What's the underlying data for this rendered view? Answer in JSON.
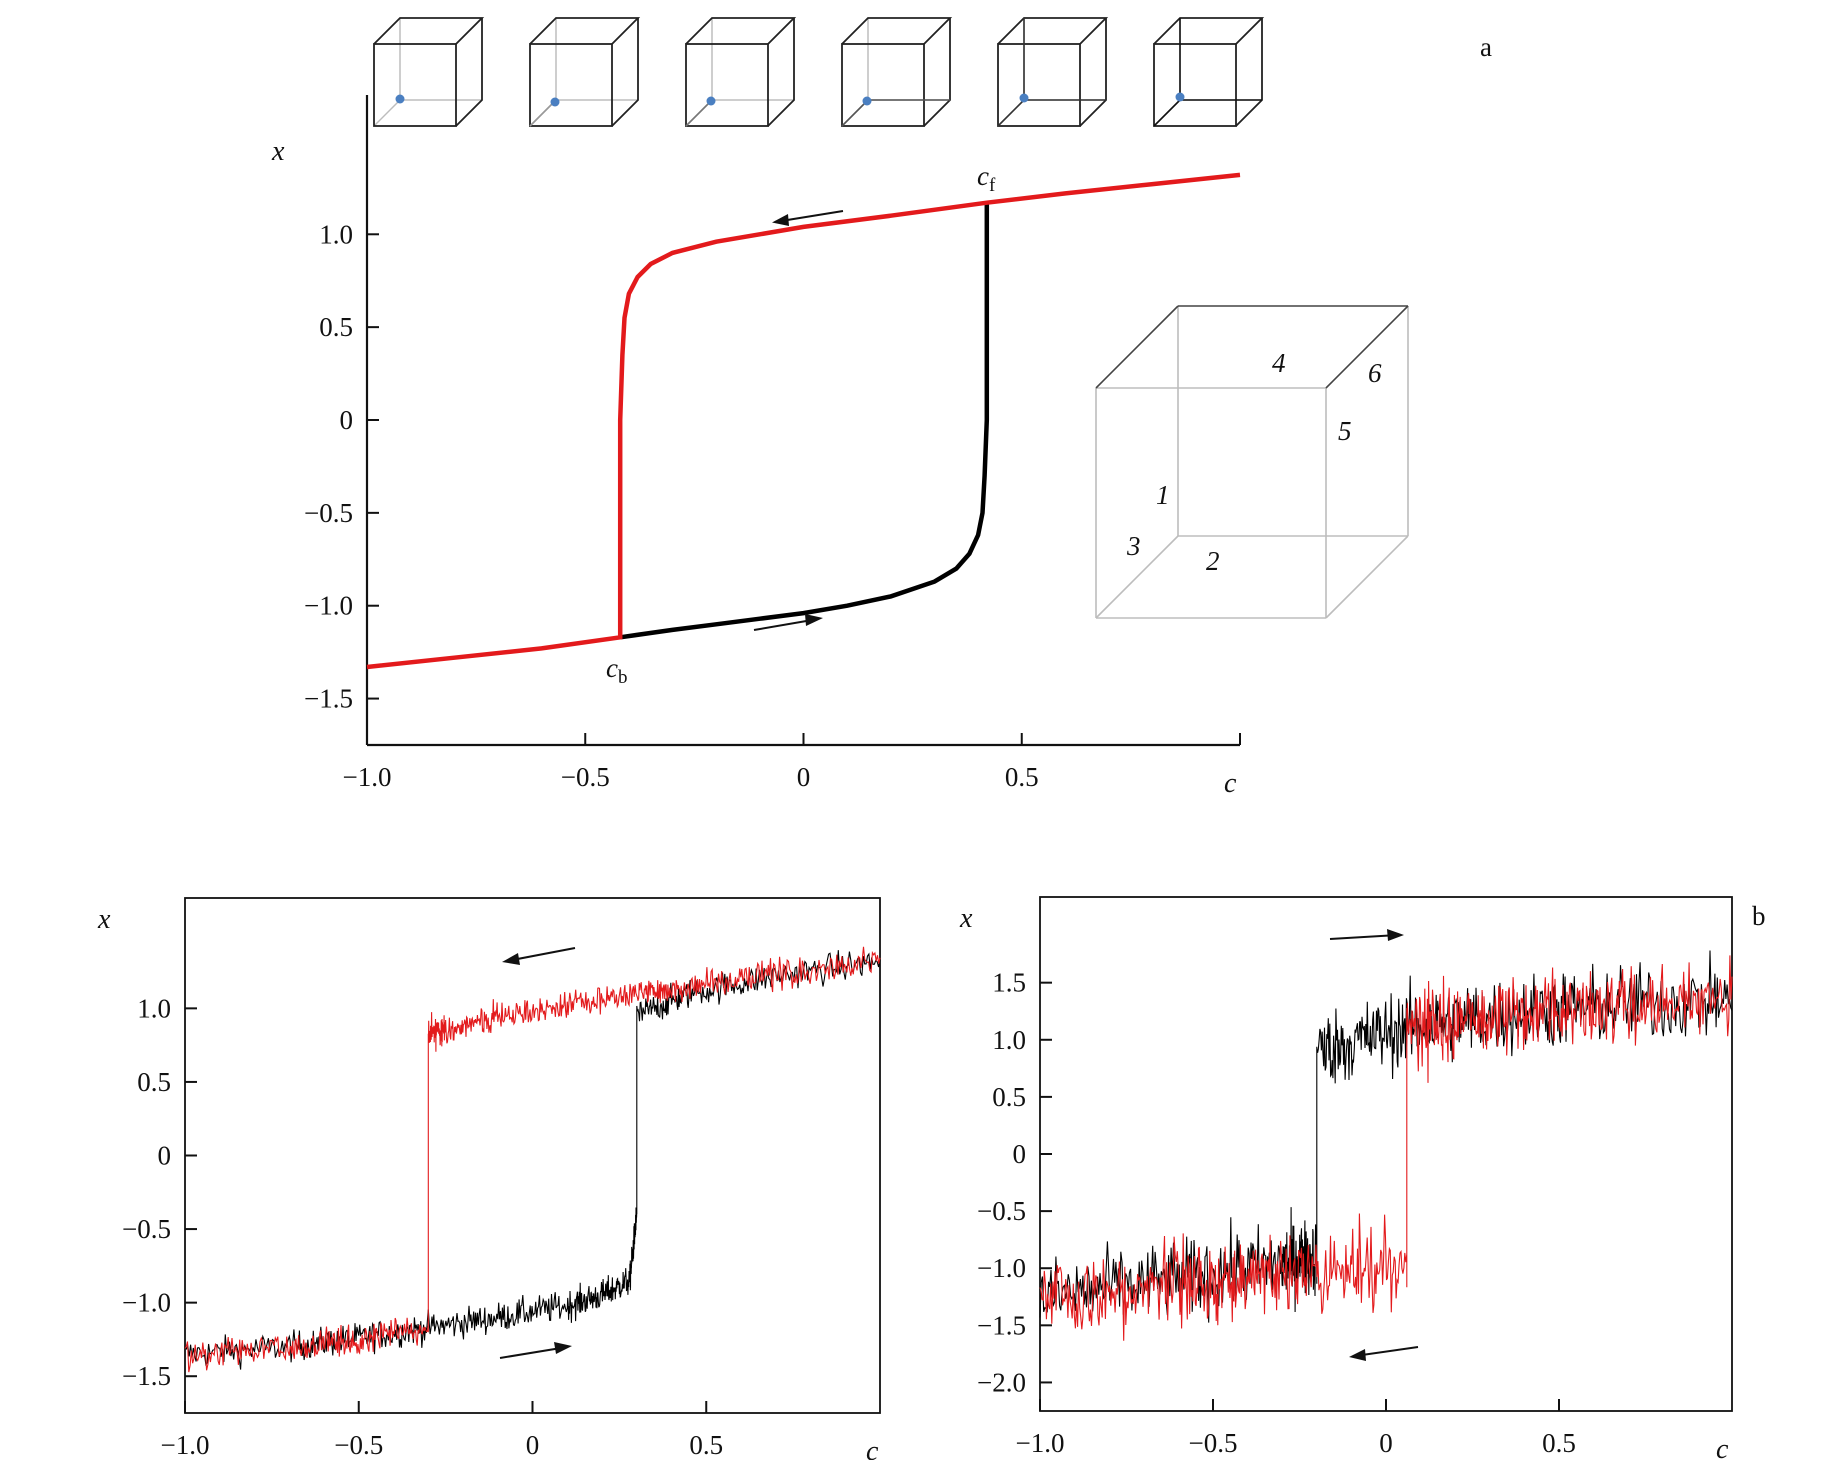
{
  "chart_data": [
    {
      "id": "a",
      "type": "line",
      "panel_label": "a",
      "xlabel": "c",
      "ylabel": "x",
      "xlim": [
        -1.0,
        1.0
      ],
      "ylim": [
        -1.75,
        1.75
      ],
      "x_ticks": [
        -1.0,
        -0.5,
        0,
        0.5
      ],
      "x_tick_labels": [
        "−1.0",
        "−0.5",
        "0",
        "0.5"
      ],
      "y_ticks": [
        1.0,
        0.5,
        0,
        -0.5,
        -1.0,
        -1.5
      ],
      "y_tick_labels": [
        "1.0",
        "0.5",
        "0",
        "−0.5",
        "−1.0",
        "−1.5"
      ],
      "critical_points": [
        {
          "label": "c",
          "sub": "f",
          "x": 0.42,
          "y": 1.17
        },
        {
          "label": "c",
          "sub": "b",
          "x": -0.42,
          "y": -1.17
        }
      ],
      "cube_edge_labels": [
        "1",
        "2",
        "3",
        "4",
        "5",
        "6"
      ],
      "top_cube_count": 6,
      "series": [
        {
          "role": "forward",
          "color": "#000000",
          "x": [
            -0.42,
            -0.3,
            -0.2,
            -0.1,
            0.0,
            0.1,
            0.2,
            0.3,
            0.35,
            0.38,
            0.4,
            0.41,
            0.415,
            0.42,
            0.42,
            0.42
          ],
          "y": [
            -1.17,
            -1.13,
            -1.1,
            -1.07,
            -1.04,
            -1.0,
            -0.95,
            -0.87,
            -0.8,
            -0.72,
            -0.62,
            -0.5,
            -0.3,
            0.0,
            0.6,
            1.17
          ]
        },
        {
          "role": "backward",
          "color": "#e31a1c",
          "x": [
            1.0,
            0.8,
            0.6,
            0.42,
            0.2,
            0.0,
            -0.2,
            -0.3,
            -0.35,
            -0.38,
            -0.4,
            -0.41,
            -0.415,
            -0.42,
            -0.42,
            -0.42,
            -0.6,
            -0.8,
            -1.0
          ],
          "y": [
            1.32,
            1.27,
            1.22,
            1.17,
            1.1,
            1.04,
            0.96,
            0.9,
            0.84,
            0.77,
            0.68,
            0.55,
            0.35,
            0.0,
            -0.6,
            -1.17,
            -1.23,
            -1.28,
            -1.33
          ]
        }
      ]
    },
    {
      "id": "b-left",
      "type": "line",
      "xlabel": "c",
      "ylabel": "x",
      "xlim": [
        -1.0,
        1.0
      ],
      "ylim": [
        -1.75,
        1.75
      ],
      "x_ticks": [
        -1.0,
        -0.5,
        0,
        0.5
      ],
      "x_tick_labels": [
        "−1.0",
        "−0.5",
        "0",
        "0.5"
      ],
      "y_ticks": [
        1.0,
        0.5,
        0,
        -0.5,
        -1.0,
        -1.5
      ],
      "y_tick_labels": [
        "1.0",
        "0.5",
        "0",
        "−0.5",
        "−1.0",
        "−1.5"
      ],
      "series": [
        {
          "role": "forward",
          "color": "#000000",
          "noise_amplitude": 0.06,
          "x": [
            -1.0,
            -0.7,
            -0.5,
            -0.3,
            -0.1,
            0.1,
            0.2,
            0.28,
            0.3,
            0.3,
            0.45,
            0.7,
            1.0
          ],
          "y": [
            -1.35,
            -1.3,
            -1.24,
            -1.17,
            -1.1,
            -1.02,
            -0.95,
            -0.85,
            -0.4,
            0.95,
            1.1,
            1.22,
            1.32
          ]
        },
        {
          "role": "backward",
          "color": "#e31a1c",
          "noise_amplitude": 0.06,
          "x": [
            1.0,
            0.7,
            0.45,
            0.3,
            0.1,
            -0.1,
            -0.25,
            -0.3,
            -0.3,
            -0.5,
            -0.7,
            -1.0
          ],
          "y": [
            1.32,
            1.24,
            1.15,
            1.1,
            1.02,
            0.94,
            0.86,
            0.82,
            -1.17,
            -1.24,
            -1.3,
            -1.35
          ]
        }
      ]
    },
    {
      "id": "b-right",
      "type": "line",
      "panel_label": "b",
      "xlabel": "c",
      "ylabel": "x",
      "xlim": [
        -1.0,
        1.0
      ],
      "ylim": [
        -2.25,
        2.25
      ],
      "x_ticks": [
        -1.0,
        -0.5,
        0,
        0.5
      ],
      "x_tick_labels": [
        "−1.0",
        "−0.5",
        "0",
        "0.5"
      ],
      "y_ticks": [
        1.5,
        1.0,
        0.5,
        0,
        -0.5,
        -1.0,
        -1.5,
        -2.0
      ],
      "y_tick_labels": [
        "1.5",
        "1.0",
        "0.5",
        "0",
        "−0.5",
        "−1.0",
        "−1.5",
        "−2.0"
      ],
      "series": [
        {
          "role": "forward",
          "color": "#000000",
          "noise_amplitude": 0.2,
          "x": [
            -1.0,
            -0.6,
            -0.3,
            -0.2,
            -0.2,
            0.05,
            0.3,
            0.6,
            1.0
          ],
          "y": [
            -1.25,
            -1.1,
            -0.95,
            -0.9,
            0.9,
            1.1,
            1.2,
            1.3,
            1.35
          ]
        },
        {
          "role": "backward",
          "color": "#e31a1c",
          "noise_amplitude": 0.2,
          "x": [
            1.0,
            0.6,
            0.3,
            0.06,
            0.06,
            -0.3,
            -0.6,
            -1.0
          ],
          "y": [
            1.35,
            1.3,
            1.2,
            1.1,
            -1.0,
            -1.05,
            -1.15,
            -1.25
          ]
        }
      ]
    }
  ]
}
